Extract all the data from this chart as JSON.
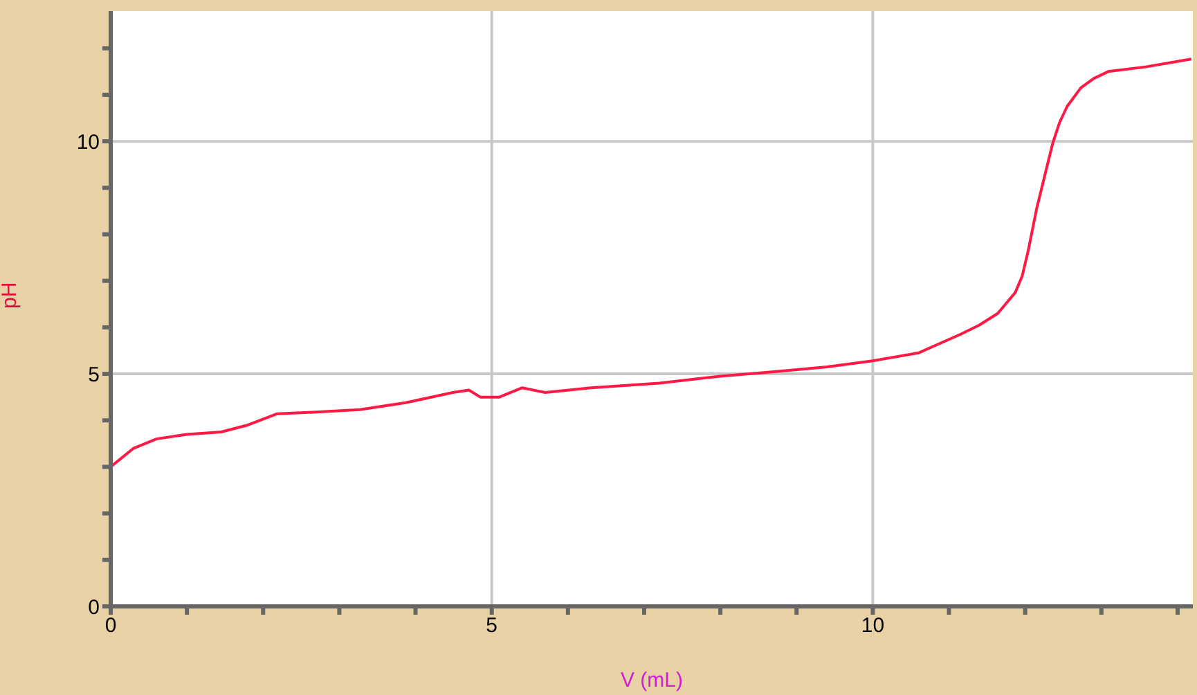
{
  "chart_data": {
    "type": "line",
    "xlabel": "V (mL)",
    "ylabel": "pH",
    "x": [
      0,
      0.3,
      0.6,
      1,
      1.45,
      1.8,
      2.18,
      2.7,
      3.27,
      3.87,
      4.49,
      4.7,
      4.85,
      5.1,
      5.4,
      5.7,
      6.3,
      7.2,
      8,
      8.73,
      9.4,
      10,
      10.6,
      11.15,
      11.4,
      11.64,
      11.87,
      11.96,
      12.04,
      12.15,
      12.27,
      12.36,
      12.45,
      12.55,
      12.73,
      12.9,
      13.09,
      13.58,
      14.18
    ],
    "series": [
      {
        "color": "#ff1a45",
        "values": [
          3.0,
          3.4,
          3.6,
          3.7,
          3.75,
          3.9,
          4.14,
          4.18,
          4.23,
          4.38,
          4.6,
          4.65,
          4.5,
          4.5,
          4.7,
          4.6,
          4.7,
          4.8,
          4.95,
          5.05,
          5.15,
          5.28,
          5.45,
          5.85,
          6.05,
          6.3,
          6.75,
          7.1,
          7.65,
          8.55,
          9.35,
          9.95,
          10.4,
          10.75,
          11.15,
          11.35,
          11.5,
          11.6,
          11.77
        ]
      }
    ],
    "xlim": [
      0,
      14.2
    ],
    "xticks": [
      0,
      {
        "value": 1,
        "label": null
      },
      {
        "value": 2,
        "label": null
      },
      {
        "value": 3,
        "label": null
      },
      {
        "value": 4,
        "label": null
      },
      5,
      {
        "value": 6,
        "label": null
      },
      {
        "value": 7,
        "label": null
      },
      {
        "value": 8,
        "label": null
      },
      {
        "value": 9,
        "label": null
      },
      10,
      {
        "value": 11,
        "label": null
      },
      {
        "value": 12,
        "label": null
      },
      {
        "value": 13,
        "label": null
      },
      {
        "value": 14,
        "label": null
      }
    ],
    "ylim": [
      0,
      12.8
    ],
    "yticks": [
      0,
      {
        "value": 1,
        "label": null
      },
      {
        "value": 2,
        "label": null
      },
      {
        "value": 3,
        "label": null
      },
      {
        "value": 4,
        "label": null
      },
      5,
      {
        "value": 6,
        "label": null
      },
      {
        "value": 7,
        "label": null
      },
      {
        "value": 8,
        "label": null
      },
      {
        "value": 9,
        "label": null
      },
      10,
      {
        "value": 11,
        "label": null
      },
      {
        "value": 12,
        "label": null
      }
    ],
    "grid": true,
    "marker": "none",
    "line_style": "solid",
    "legend": false
  }
}
